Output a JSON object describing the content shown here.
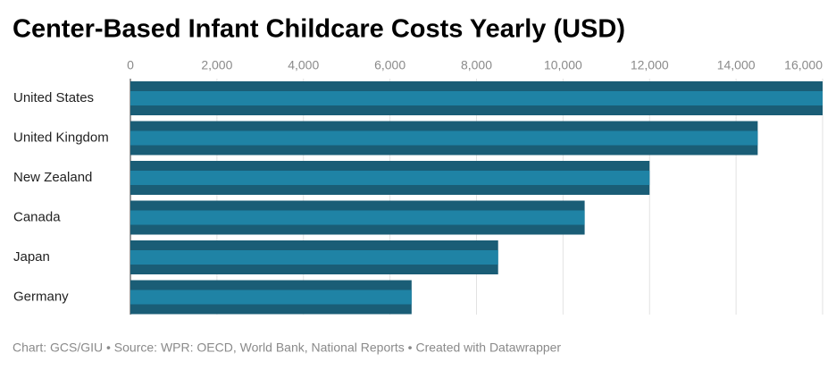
{
  "chart_data": {
    "type": "bar",
    "orientation": "horizontal",
    "title": "Center-Based Infant Childcare Costs Yearly (USD)",
    "categories": [
      "United States",
      "United Kingdom",
      "New Zealand",
      "Canada",
      "Japan",
      "Germany"
    ],
    "values": [
      16000,
      14500,
      12000,
      10500,
      8500,
      6500
    ],
    "color": "#1a5d76",
    "stripe_color": "#1f83a5",
    "xlim": [
      0,
      16000
    ],
    "xticks": [
      0,
      {
        "value": 2000,
        "label": "2,000"
      },
      {
        "value": 4000,
        "label": "4,000"
      },
      {
        "value": 6000,
        "label": "6,000"
      },
      {
        "value": 8000,
        "label": "8,000"
      },
      {
        "value": 10000,
        "label": "10,000"
      },
      {
        "value": 12000,
        "label": "12,000"
      },
      {
        "value": 14000,
        "label": "14,000"
      },
      {
        "value": 16000,
        "label": "16,000"
      }
    ],
    "grid": true,
    "footer": "Chart: GCS/GIU • Source: WPR: OECD, World Bank, National Reports • Created with Datawrapper"
  }
}
